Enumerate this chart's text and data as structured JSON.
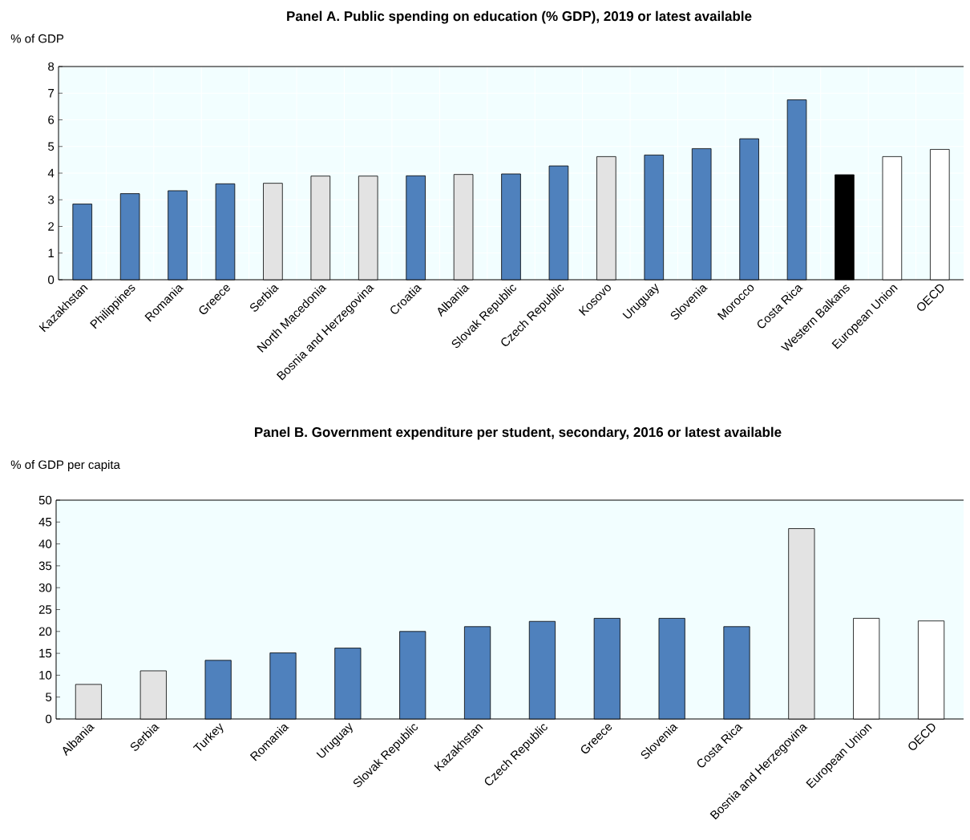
{
  "chart_data": [
    {
      "type": "bar",
      "title": "Panel A. Public spending on education (% GDP), 2019 or latest available",
      "ylabel": "% of GDP",
      "categories": [
        "Kazakhstan",
        "Philippines",
        "Romania",
        "Greece",
        "Serbia",
        "North Macedonia",
        "Bosnia and Herzegovina",
        "Croatia",
        "Albania",
        "Slovak Republic",
        "Czech Republic",
        "Kosovo",
        "Uruguay",
        "Slovenia",
        "Morocco",
        "Costa Rica",
        "Western Balkans",
        "European Union",
        "OECD"
      ],
      "values": [
        2.84,
        3.23,
        3.34,
        3.6,
        3.62,
        3.89,
        3.89,
        3.9,
        3.95,
        3.97,
        4.27,
        4.62,
        4.68,
        4.92,
        5.29,
        6.75,
        3.94,
        4.62,
        4.89
      ],
      "colors": [
        "#4f81bd",
        "#4f81bd",
        "#4f81bd",
        "#4f81bd",
        "#e3e3e3",
        "#e3e3e3",
        "#e3e3e3",
        "#4f81bd",
        "#e3e3e3",
        "#4f81bd",
        "#4f81bd",
        "#e3e3e3",
        "#4f81bd",
        "#4f81bd",
        "#4f81bd",
        "#4f81bd",
        "#000000",
        "#ffffff",
        "#ffffff"
      ],
      "ylim": [
        0,
        8
      ],
      "yticks": [
        0,
        1,
        2,
        3,
        4,
        5,
        6,
        7,
        8
      ],
      "grid": true
    },
    {
      "type": "bar",
      "title": "Panel B. Government expenditure per student, secondary, 2016 or latest available",
      "ylabel": "% of GDP per capita",
      "categories": [
        "Albania",
        "Serbia",
        "Turkey",
        "Romania",
        "Uruguay",
        "Slovak Republic",
        "Kazakhstan",
        "Czech Republic",
        "Greece",
        "Slovenia",
        "Costa Rica",
        "Bosnia and Herzegovina",
        "European Union",
        "OECD"
      ],
      "values": [
        7.9,
        11.0,
        13.4,
        15.1,
        16.2,
        20.0,
        21.1,
        22.3,
        23.0,
        23.0,
        21.1,
        43.5,
        23.0,
        22.4
      ],
      "colors": [
        "#e3e3e3",
        "#e3e3e3",
        "#4f81bd",
        "#4f81bd",
        "#4f81bd",
        "#4f81bd",
        "#4f81bd",
        "#4f81bd",
        "#4f81bd",
        "#4f81bd",
        "#4f81bd",
        "#e3e3e3",
        "#ffffff",
        "#ffffff"
      ],
      "ylim": [
        0,
        50
      ],
      "yticks": [
        0,
        5,
        10,
        15,
        20,
        25,
        30,
        35,
        40,
        45,
        50
      ],
      "grid": false
    }
  ]
}
